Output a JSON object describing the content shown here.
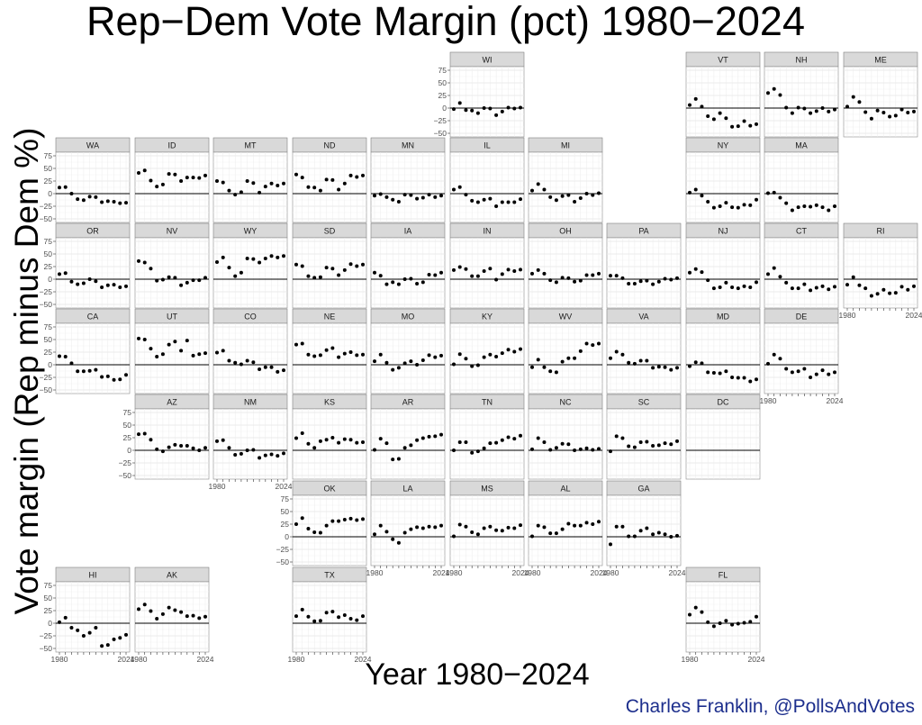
{
  "title": "Rep−Dem Vote Margin (pct) 1980−2024",
  "ylabel": "Vote margin (Rep minus Dem %)",
  "xlabel": "Year 1980−2024",
  "credit": "Charles Franklin, @PollsAndVotes",
  "colors": {
    "trend": "#e8141b",
    "band": "#b8b8b8",
    "strip": "#d9d9d9",
    "points": "#000000"
  },
  "chart_data": {
    "type": "scatter",
    "facet": "geofacet-us-states",
    "x_range": [
      1980,
      2024
    ],
    "ylim": [
      -50,
      75
    ],
    "y_ticks": [
      "75",
      "50",
      "25",
      "0",
      "−25",
      "−50"
    ],
    "x_ticks": [
      "1980",
      "2024"
    ],
    "years": [
      1980,
      1984,
      1988,
      1992,
      1996,
      2000,
      2004,
      2008,
      2012,
      2016,
      2020,
      2024
    ],
    "panels": [
      {
        "label": "WI",
        "values": [
          -2,
          10,
          -4,
          -5,
          -10,
          0,
          -1,
          -14,
          -7,
          1,
          -1,
          1
        ]
      },
      {
        "label": "VT",
        "values": [
          6,
          18,
          3,
          -16,
          -22,
          -10,
          -20,
          -37,
          -36,
          -26,
          -35,
          -32
        ]
      },
      {
        "label": "NH",
        "values": [
          30,
          38,
          26,
          1,
          -10,
          1,
          -1,
          -10,
          -6,
          0,
          -7,
          -3
        ]
      },
      {
        "label": "ME",
        "values": [
          3,
          22,
          12,
          -8,
          -21,
          -5,
          -9,
          -17,
          -15,
          -3,
          -9,
          -7
        ]
      },
      {
        "label": "WA",
        "values": [
          12,
          13,
          0,
          -11,
          -13,
          -6,
          -7,
          -17,
          -15,
          -16,
          -19,
          -18
        ]
      },
      {
        "label": "ID",
        "values": [
          41,
          46,
          26,
          14,
          18,
          39,
          38,
          25,
          32,
          32,
          31,
          36
        ]
      },
      {
        "label": "MT",
        "values": [
          25,
          22,
          6,
          -2,
          3,
          25,
          21,
          2,
          14,
          20,
          16,
          20
        ]
      },
      {
        "label": "ND",
        "values": [
          38,
          32,
          13,
          12,
          6,
          28,
          27,
          8,
          20,
          36,
          33,
          36
        ]
      },
      {
        "label": "MN",
        "values": [
          -4,
          -1,
          -7,
          -12,
          -16,
          -2,
          -3,
          -10,
          -8,
          -2,
          -7,
          -4
        ]
      },
      {
        "label": "IL",
        "values": [
          8,
          13,
          -2,
          -14,
          -17,
          -12,
          -10,
          -25,
          -17,
          -17,
          -17,
          -11
        ]
      },
      {
        "label": "MI",
        "values": [
          6,
          19,
          8,
          -7,
          -13,
          -5,
          -3,
          -16,
          -9,
          0,
          -3,
          1
        ]
      },
      {
        "label": "NY",
        "values": [
          2,
          8,
          -4,
          -16,
          -28,
          -25,
          -18,
          -27,
          -28,
          -22,
          -23,
          -12
        ]
      },
      {
        "label": "MA",
        "values": [
          1,
          2,
          -8,
          -19,
          -33,
          -27,
          -25,
          -26,
          -23,
          -27,
          -33,
          -25
        ]
      },
      {
        "label": "OR",
        "values": [
          10,
          12,
          -5,
          -10,
          -8,
          0,
          -4,
          -16,
          -12,
          -11,
          -16,
          -14
        ]
      },
      {
        "label": "NV",
        "values": [
          36,
          33,
          21,
          -3,
          -1,
          4,
          3,
          -12,
          -7,
          -2,
          -2,
          3
        ]
      },
      {
        "label": "WY",
        "values": [
          34,
          43,
          23,
          6,
          13,
          41,
          40,
          33,
          41,
          46,
          43,
          46
        ]
      },
      {
        "label": "SD",
        "values": [
          29,
          26,
          6,
          3,
          4,
          23,
          21,
          8,
          18,
          30,
          26,
          29
        ]
      },
      {
        "label": "IA",
        "values": [
          13,
          7,
          -10,
          -6,
          -10,
          0,
          1,
          -9,
          -6,
          9,
          8,
          13
        ]
      },
      {
        "label": "IN",
        "values": [
          18,
          24,
          20,
          6,
          6,
          16,
          21,
          -1,
          10,
          19,
          16,
          19
        ]
      },
      {
        "label": "OH",
        "values": [
          11,
          18,
          11,
          -2,
          -6,
          3,
          2,
          -5,
          -3,
          8,
          8,
          11
        ]
      },
      {
        "label": "PA",
        "values": [
          7,
          7,
          2,
          -9,
          -9,
          -4,
          -3,
          -10,
          -5,
          1,
          -1,
          2
        ]
      },
      {
        "label": "NJ",
        "values": [
          13,
          20,
          14,
          -2,
          -18,
          -16,
          -7,
          -16,
          -18,
          -14,
          -16,
          -6
        ]
      },
      {
        "label": "CT",
        "values": [
          10,
          22,
          5,
          -7,
          -18,
          -18,
          -10,
          -22,
          -17,
          -14,
          -20,
          -15
        ]
      },
      {
        "label": "RI",
        "values": [
          -11,
          4,
          -12,
          -18,
          -33,
          -29,
          -21,
          -28,
          -27,
          -15,
          -21,
          -14
        ]
      },
      {
        "label": "CA",
        "values": [
          17,
          16,
          3,
          -13,
          -13,
          -12,
          -10,
          -24,
          -23,
          -30,
          -29,
          -20
        ]
      },
      {
        "label": "UT",
        "values": [
          52,
          50,
          32,
          16,
          21,
          40,
          46,
          28,
          48,
          18,
          21,
          23
        ]
      },
      {
        "label": "CO",
        "values": [
          24,
          28,
          8,
          4,
          1,
          8,
          5,
          -9,
          -5,
          -5,
          -14,
          -11
        ]
      },
      {
        "label": "NE",
        "values": [
          40,
          42,
          20,
          17,
          19,
          29,
          33,
          15,
          22,
          25,
          19,
          20
        ]
      },
      {
        "label": "MO",
        "values": [
          7,
          20,
          4,
          -10,
          -6,
          3,
          7,
          0,
          9,
          19,
          15,
          18
        ]
      },
      {
        "label": "KY",
        "values": [
          1,
          21,
          12,
          -3,
          -1,
          15,
          20,
          16,
          23,
          30,
          26,
          31
        ]
      },
      {
        "label": "WV",
        "values": [
          -5,
          10,
          -5,
          -13,
          -15,
          6,
          13,
          13,
          27,
          42,
          39,
          42
        ]
      },
      {
        "label": "VA",
        "values": [
          13,
          26,
          20,
          4,
          2,
          8,
          8,
          -6,
          -4,
          -5,
          -10,
          -6
        ]
      },
      {
        "label": "MD",
        "values": [
          -3,
          5,
          3,
          -15,
          -16,
          -17,
          -13,
          -25,
          -26,
          -26,
          -33,
          -29
        ]
      },
      {
        "label": "DE",
        "values": [
          2,
          20,
          12,
          -8,
          -15,
          -13,
          -8,
          -25,
          -19,
          -11,
          -19,
          -15
        ]
      },
      {
        "label": "AZ",
        "values": [
          32,
          33,
          21,
          2,
          -2,
          6,
          11,
          9,
          9,
          4,
          0,
          5
        ]
      },
      {
        "label": "NM",
        "values": [
          18,
          20,
          5,
          -9,
          -7,
          0,
          1,
          -15,
          -10,
          -8,
          -11,
          -6
        ]
      },
      {
        "label": "KS",
        "values": [
          24,
          34,
          13,
          5,
          18,
          21,
          25,
          15,
          22,
          21,
          15,
          16
        ]
      },
      {
        "label": "AR",
        "values": [
          1,
          23,
          14,
          -18,
          -17,
          5,
          10,
          20,
          24,
          27,
          28,
          31
        ]
      },
      {
        "label": "TN",
        "values": [
          0,
          16,
          16,
          -5,
          -2,
          4,
          14,
          15,
          20,
          26,
          23,
          29
        ]
      },
      {
        "label": "NC",
        "values": [
          2,
          24,
          16,
          1,
          5,
          13,
          12,
          0,
          2,
          4,
          1,
          3
        ]
      },
      {
        "label": "SC",
        "values": [
          -2,
          28,
          24,
          8,
          6,
          16,
          17,
          9,
          10,
          14,
          12,
          18
        ]
      },
      {
        "label": "DC",
        "values": []
      },
      {
        "label": "OK",
        "values": [
          25,
          37,
          16,
          9,
          8,
          22,
          31,
          31,
          34,
          36,
          33,
          35
        ]
      },
      {
        "label": "LA",
        "values": [
          5,
          22,
          10,
          -5,
          -12,
          8,
          15,
          19,
          17,
          20,
          19,
          22
        ]
      },
      {
        "label": "MS",
        "values": [
          1,
          24,
          20,
          9,
          5,
          17,
          20,
          13,
          12,
          18,
          17,
          23
        ]
      },
      {
        "label": "AL",
        "values": [
          1,
          22,
          19,
          7,
          7,
          15,
          26,
          22,
          22,
          28,
          25,
          30
        ]
      },
      {
        "label": "GA",
        "values": [
          -15,
          20,
          20,
          1,
          1,
          12,
          17,
          5,
          8,
          5,
          0,
          2
        ]
      },
      {
        "label": "HI",
        "values": [
          2,
          11,
          -9,
          -14,
          -25,
          -19,
          -9,
          -45,
          -43,
          -32,
          -29,
          -23
        ]
      },
      {
        "label": "AK",
        "values": [
          28,
          37,
          24,
          9,
          18,
          31,
          26,
          22,
          14,
          15,
          10,
          13
        ]
      },
      {
        "label": "TX",
        "values": [
          14,
          27,
          13,
          4,
          5,
          21,
          23,
          12,
          16,
          9,
          6,
          14
        ]
      },
      {
        "label": "FL",
        "values": [
          17,
          31,
          22,
          2,
          -6,
          0,
          5,
          -3,
          -1,
          1,
          3,
          13
        ]
      }
    ]
  }
}
